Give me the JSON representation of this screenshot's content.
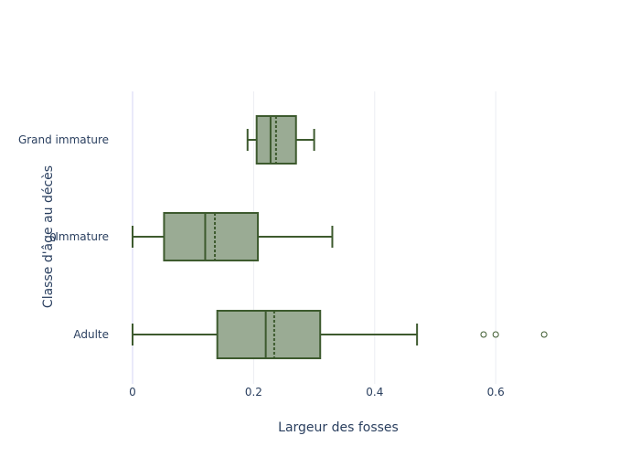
{
  "chart_data": {
    "type": "box",
    "orientation": "horizontal",
    "xlabel": "Largeur des fosses",
    "ylabel": "Classe d'âge au décès",
    "xlim": [
      0,
      0.78
    ],
    "x_ticks": [
      0,
      0.2,
      0.4,
      0.6
    ],
    "x_tick_labels": [
      "0",
      "0.2",
      "0.4",
      "0.6"
    ],
    "grid": true,
    "legend": "none",
    "color": "#3d5a2e",
    "fill": "#9aab94",
    "categories": [
      "Adulte",
      "Immature",
      "Grand immature"
    ],
    "boxes": [
      {
        "category": "Adulte",
        "min": 0,
        "q1": 0.14,
        "median": 0.22,
        "mean": 0.234,
        "q3": 0.31,
        "max": 0.47,
        "outliers": [
          0.58,
          0.6,
          0.68
        ]
      },
      {
        "category": "Immature",
        "min": 0,
        "q1": 0.052,
        "median": 0.12,
        "mean": 0.136,
        "q3": 0.207,
        "max": 0.33,
        "outliers": []
      },
      {
        "category": "Grand immature",
        "min": 0.19,
        "q1": 0.205,
        "median": 0.228,
        "mean": 0.237,
        "q3": 0.27,
        "max": 0.3,
        "outliers": []
      }
    ],
    "stray_label": "0"
  }
}
